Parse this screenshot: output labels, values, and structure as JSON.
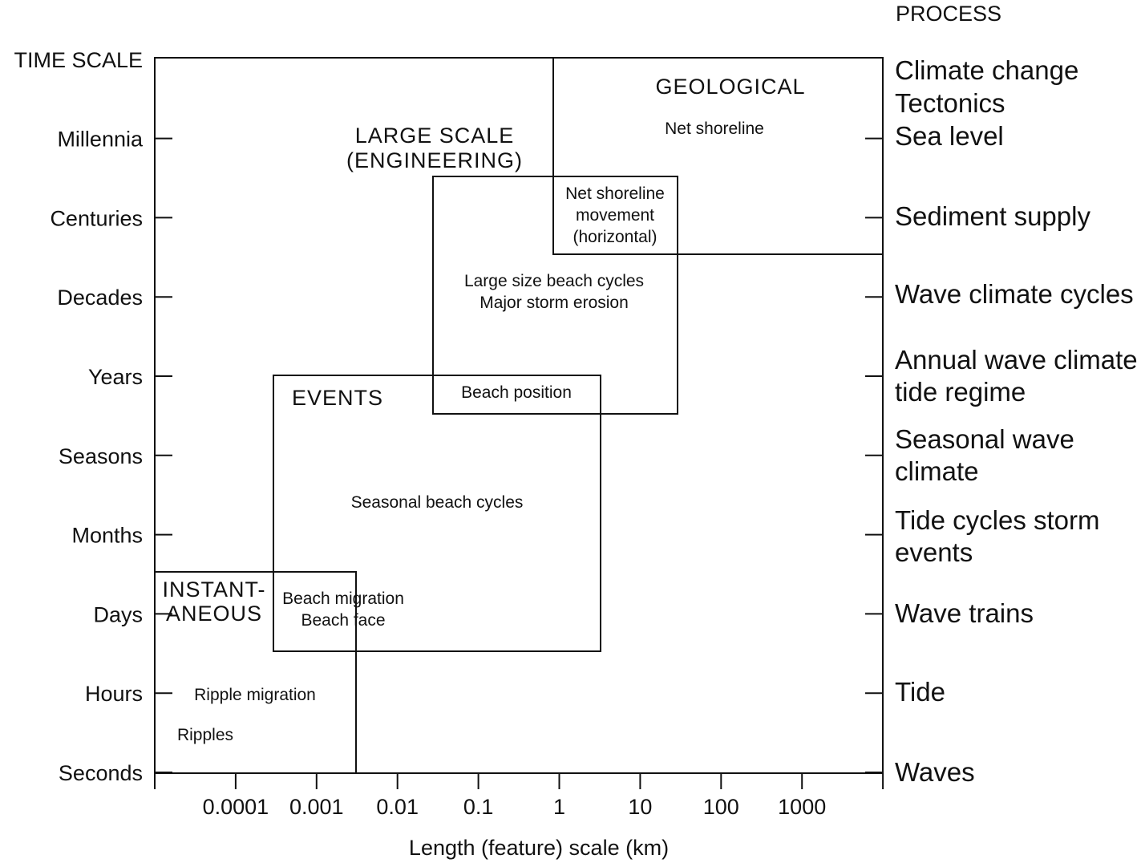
{
  "diagram": {
    "time_scale_title": "TIME SCALE",
    "process_title": "PROCESS",
    "x_axis_title": "Length (feature) scale (km)",
    "time_levels": [
      "Seconds",
      "Hours",
      "Days",
      "Months",
      "Seasons",
      "Years",
      "Decades",
      "Centuries",
      "Millennia"
    ],
    "x_ticks": [
      "0.0001",
      "0.001",
      "0.01",
      "0.1",
      "1",
      "10",
      "100",
      "1000"
    ],
    "processes": [
      [
        "Waves"
      ],
      [
        "Tide"
      ],
      [
        "Wave trains"
      ],
      [
        "Tide cycles storm",
        "events"
      ],
      [
        "Seasonal wave",
        "climate"
      ],
      [
        "Annual wave climate",
        "tide regime"
      ],
      [
        "Wave climate cycles"
      ],
      [
        "Sediment supply"
      ],
      [
        "Sea level"
      ],
      [
        "Climate change",
        "Tectonics"
      ]
    ],
    "regions": {
      "instantaneous": {
        "title": [
          "INSTANT-",
          "ANEOUS"
        ]
      },
      "events": {
        "title": [
          "EVENTS"
        ]
      },
      "large_scale": {
        "title": [
          "LARGE SCALE",
          "(ENGINEERING)"
        ]
      },
      "geological": {
        "title": [
          "GEOLOGICAL"
        ]
      }
    },
    "features": {
      "net_shoreline": [
        "Net shoreline"
      ],
      "net_shoreline_movement": [
        "Net shoreline",
        "movement",
        "(horizontal)"
      ],
      "large_beach_cycles": [
        "Large size beach cycles",
        "Major storm erosion"
      ],
      "beach_position": [
        "Beach position"
      ],
      "seasonal_beach_cycles": [
        "Seasonal beach cycles"
      ],
      "beach_migration": [
        "Beach migration",
        "Beach face"
      ],
      "ripple_migration": [
        "Ripple migration"
      ],
      "ripples": [
        "Ripples"
      ]
    }
  }
}
